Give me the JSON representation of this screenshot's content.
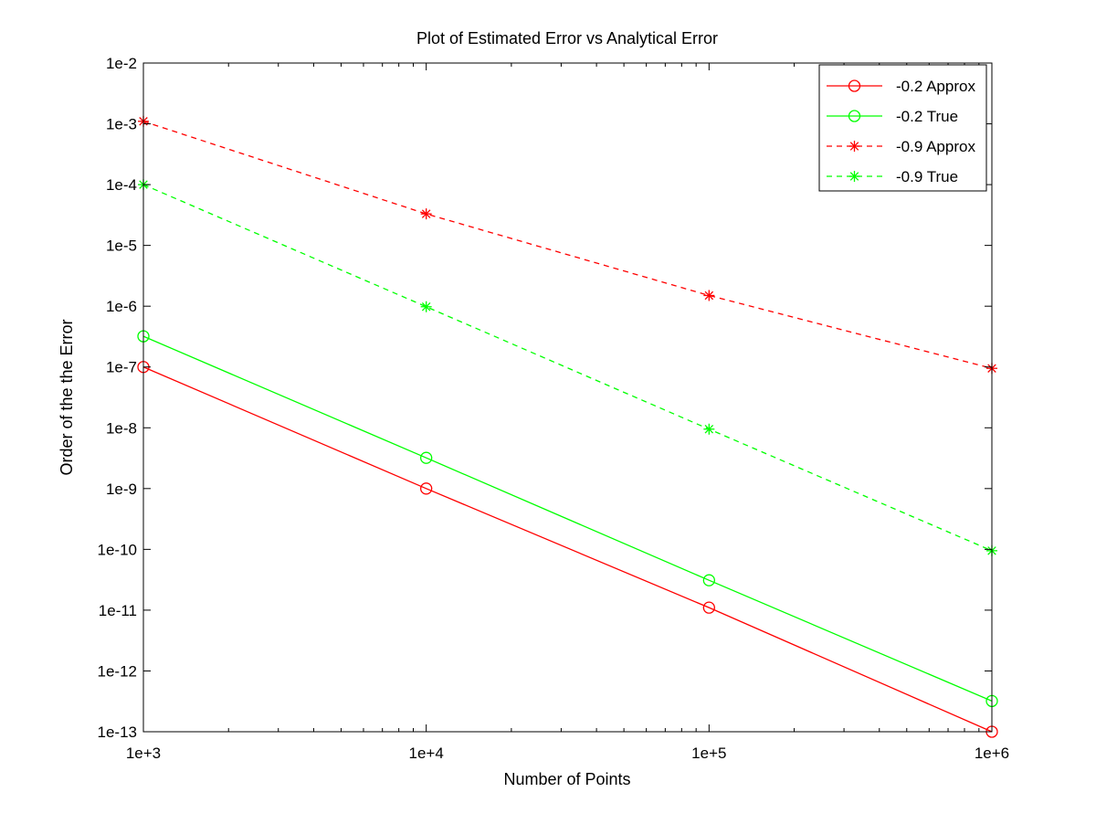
{
  "chart_data": {
    "type": "line",
    "title": "Plot of Estimated Error vs Analytical Error",
    "xlabel": "Number of Points",
    "ylabel": "Order of the the Error",
    "xscale": "log",
    "yscale": "log",
    "xlim": [
      1000,
      1000000
    ],
    "ylim": [
      1e-13,
      0.01
    ],
    "xticks": [
      1000,
      10000,
      100000,
      1000000
    ],
    "xtick_labels": [
      "1e+3",
      "1e+4",
      "1e+5",
      "1e+6"
    ],
    "yticks": [
      1e-13,
      1e-12,
      1e-11,
      1e-10,
      1e-09,
      1e-08,
      1e-07,
      1e-06,
      1e-05,
      0.0001,
      0.001,
      0.01
    ],
    "ytick_labels": [
      "1e-13",
      "1e-12",
      "1e-11",
      "1e-10",
      "1e-9",
      "1e-8",
      "1e-7",
      "1e-6",
      "1e-5",
      "1e-4",
      "1e-3",
      "1e-2"
    ],
    "x": [
      1000,
      10000,
      100000,
      1000000
    ],
    "grid": false,
    "legend_position": "top-right",
    "series": [
      {
        "name": "-0.2 Approx",
        "color": "#ff0000",
        "line": "solid",
        "marker": "circle",
        "values": [
          1e-07,
          1e-09,
          1.1e-11,
          1e-13
        ]
      },
      {
        "name": "-0.2 True",
        "color": "#00ff00",
        "line": "solid",
        "marker": "circle",
        "values": [
          3.2e-07,
          3.2e-09,
          3.1e-11,
          3.2e-13
        ]
      },
      {
        "name": "-0.9 Approx",
        "color": "#ff0000",
        "line": "dashed",
        "marker": "asterisk",
        "values": [
          0.0011,
          3.3e-05,
          1.5e-06,
          9.5e-08
        ]
      },
      {
        "name": "-0.9 True",
        "color": "#00ff00",
        "line": "dashed",
        "marker": "asterisk",
        "values": [
          0.0001,
          9.8e-07,
          9.5e-09,
          9.5e-11
        ]
      }
    ]
  }
}
